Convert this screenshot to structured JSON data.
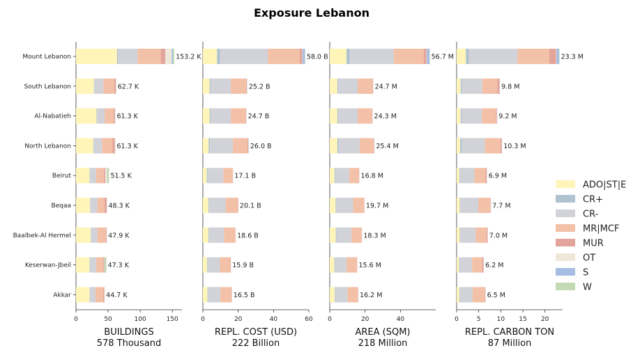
{
  "chart_data": {
    "type": "bar",
    "orientation": "horizontal-stacked",
    "title": "Exposure Lebanon",
    "categories": [
      "Mount Lebanon",
      "South Lebanon",
      "Al-Nabatieh",
      "North Lebanon",
      "Beirut",
      "Beqaa",
      "Baalbek-Al Hermel",
      "Keserwan-Jbeil",
      "Akkar"
    ],
    "legend": {
      "placement": "right",
      "items": [
        {
          "name": "ADO|ST|E",
          "color": "#fff5b8"
        },
        {
          "name": "CR+",
          "color": "#aec3cf"
        },
        {
          "name": "CR-",
          "color": "#d1d3d9"
        },
        {
          "name": "MR|MCF",
          "color": "#f3c1a7"
        },
        {
          "name": "MUR",
          "color": "#e3a59b"
        },
        {
          "name": "OT",
          "color": "#efe7da"
        },
        {
          "name": "S",
          "color": "#a6bde4"
        },
        {
          "name": "W",
          "color": "#c3dab4"
        }
      ]
    },
    "panels": [
      {
        "xlabel": "BUILDINGS",
        "subtitle": "578 Thousand",
        "xlim": [
          0,
          165
        ],
        "ticks": [
          0,
          50,
          100,
          150
        ],
        "totals": [
          "153.2 K",
          "62.7 K",
          "61.3 K",
          "61.3 K",
          "51.5 K",
          "48.3 K",
          "47.9 K",
          "47.3 K",
          "44.7 K"
        ],
        "stacks": [
          [
            64,
            2,
            30,
            36,
            7,
            10,
            2,
            2.2
          ],
          [
            28,
            0.6,
            14,
            17,
            2.5,
            0.3,
            0.1,
            0.2
          ],
          [
            32,
            0.6,
            12,
            14,
            2,
            0.3,
            0.1,
            0.3
          ],
          [
            27,
            0.6,
            13,
            16,
            4,
            0.3,
            0.1,
            0.3
          ],
          [
            21,
            0.5,
            10,
            12,
            2,
            3,
            0.3,
            2.7
          ],
          [
            22,
            0.3,
            11,
            11,
            3.5,
            0.3,
            0.1,
            0.1
          ],
          [
            23,
            0.3,
            10,
            13,
            1.4,
            0.1,
            0.05,
            0.05
          ],
          [
            21,
            0.5,
            10,
            11,
            1.5,
            0.3,
            0.2,
            2.8
          ],
          [
            21,
            0.3,
            9,
            12,
            1.8,
            0.4,
            0.1,
            0.1
          ]
        ]
      },
      {
        "xlabel": "REPL. COST (USD)",
        "subtitle": "222 Billion",
        "xlim": [
          0,
          60
        ],
        "ticks": [
          0,
          20,
          40,
          60
        ],
        "totals": [
          "58.0 B",
          "25.2 B",
          "24.7 B",
          "26.0 B",
          "17.1 B",
          "20.1 B",
          "18.6 B",
          "15.9 B",
          "16.5 B"
        ],
        "stacks": [
          [
            8,
            1.8,
            27,
            18,
            1.5,
            0.2,
            1.2,
            0.3
          ],
          [
            3.8,
            0.5,
            11.5,
            8.8,
            0.3,
            0.1,
            0.1,
            0.1
          ],
          [
            3.8,
            0.5,
            11.5,
            8.5,
            0.2,
            0.1,
            0.05,
            0.05
          ],
          [
            3.3,
            0.7,
            13,
            8.2,
            0.5,
            0.1,
            0.1,
            0.1
          ],
          [
            2.2,
            0.4,
            9,
            5.3,
            0.1,
            0.05,
            0.03,
            0.02
          ],
          [
            3.2,
            0.4,
            9.3,
            6.8,
            0.3,
            0.05,
            0.03,
            0.02
          ],
          [
            3.2,
            0.4,
            8.4,
            6.4,
            0.1,
            0.05,
            0.03,
            0.02
          ],
          [
            2.4,
            0.3,
            7,
            5.9,
            0.2,
            0.05,
            0.03,
            0.02
          ],
          [
            2.6,
            0.3,
            7,
            6.4,
            0.1,
            0.05,
            0.03,
            0.02
          ]
        ]
      },
      {
        "xlabel": "AREA (SQM)",
        "subtitle": "218 Million",
        "xlim": [
          0,
          60
        ],
        "ticks": [
          0,
          20,
          40
        ],
        "totals": [
          "56.7 M",
          "24.7 M",
          "24.3 M",
          "25.4 M",
          "16.8 M",
          "19.7 M",
          "18.3 M",
          "15.6 M",
          "16.2 M"
        ],
        "stacks": [
          [
            9.5,
            1.8,
            25,
            17,
            1.5,
            0.2,
            1.5,
            0.2
          ],
          [
            4.3,
            0.5,
            11,
            8.5,
            0.2,
            0.1,
            0.05,
            0.05
          ],
          [
            4.3,
            0.5,
            11,
            8.2,
            0.2,
            0.05,
            0.03,
            0.02
          ],
          [
            4.3,
            0.7,
            12,
            8,
            0.2,
            0.1,
            0.05,
            0.05
          ],
          [
            2.7,
            0.4,
            8,
            5.5,
            0.1,
            0.05,
            0.03,
            0.02
          ],
          [
            3.3,
            0.4,
            9.5,
            6.3,
            0.1,
            0.05,
            0.03,
            0.02
          ],
          [
            3.4,
            0.4,
            8.5,
            5.8,
            0.1,
            0.05,
            0.03,
            0.02
          ],
          [
            2.6,
            0.3,
            6.7,
            5.8,
            0.1,
            0.05,
            0.03,
            0.02
          ],
          [
            2.8,
            0.3,
            6.9,
            6,
            0.1,
            0.05,
            0.03,
            0.02
          ]
        ]
      },
      {
        "xlabel": "REPL. CARBON TON",
        "subtitle": "87 Million",
        "xlim": [
          0,
          24
        ],
        "ticks": [
          0,
          5,
          10,
          15,
          20
        ],
        "totals": [
          "23.3 M",
          "9.8 M",
          "9.2 M",
          "10.3 M",
          "6.9 M",
          "7.7 M",
          "7.0 M",
          "6.2 M",
          "6.5 M"
        ],
        "stacks": [
          [
            2.1,
            0.7,
            11,
            7.2,
            1.5,
            0.1,
            0.6,
            0.1
          ],
          [
            0.9,
            0.2,
            4.7,
            3.4,
            0.5,
            0.05,
            0.03,
            0.02
          ],
          [
            0.9,
            0.2,
            4.6,
            3.2,
            0.2,
            0.05,
            0.03,
            0.02
          ],
          [
            0.8,
            0.3,
            5.3,
            3.5,
            0.3,
            0.05,
            0.03,
            0.02
          ],
          [
            0.6,
            0.1,
            3.3,
            2.5,
            0.3,
            0.05,
            0.03,
            0.02
          ],
          [
            0.7,
            0.1,
            4.1,
            2.7,
            0.1,
            0.03,
            0.02,
            0.02
          ],
          [
            0.7,
            0.1,
            3.5,
            2.5,
            0.2,
            0.03,
            0.02,
            0.02
          ],
          [
            0.5,
            0.1,
            2.9,
            2.3,
            0.3,
            0.03,
            0.02,
            0.02
          ],
          [
            0.6,
            0.1,
            2.9,
            2.8,
            0.1,
            0.03,
            0.02,
            0.02
          ]
        ]
      }
    ]
  }
}
